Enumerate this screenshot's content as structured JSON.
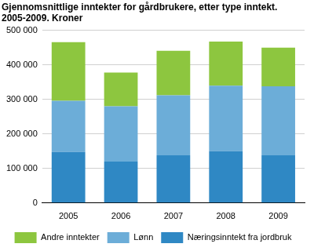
{
  "chart_data": {
    "type": "bar",
    "title": [
      "Gjennomsnittlige inntekter for gårdbrukere, etter type inntekt.",
      "2005-2009. Kroner"
    ],
    "categories": [
      "2005",
      "2006",
      "2007",
      "2008",
      "2009"
    ],
    "series": [
      {
        "name": "Næringsinntekt fra jordbruk",
        "color": "#2f88c4",
        "values": [
          148000,
          120000,
          138000,
          150000,
          138000
        ]
      },
      {
        "name": "Lønn",
        "color": "#6cadd8",
        "values": [
          148000,
          160000,
          174000,
          190000,
          200000
        ]
      },
      {
        "name": "Andre inntekter",
        "color": "#8dc63f",
        "values": [
          170000,
          98000,
          129000,
          128000,
          112000
        ]
      }
    ],
    "stacked": true,
    "ylim": [
      0,
      500000
    ],
    "yticks": [
      0,
      {
        "value": 100000,
        "label": "100 000"
      },
      {
        "value": 200000,
        "label": "200 000"
      },
      {
        "value": 300000,
        "label": "300 000"
      },
      {
        "value": 400000,
        "label": "400 000"
      },
      {
        "value": 500000,
        "label": "500 000"
      }
    ],
    "grid": true,
    "legend": "bottom"
  }
}
